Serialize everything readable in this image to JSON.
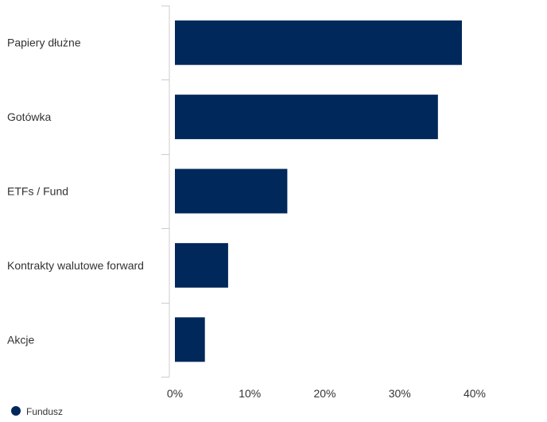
{
  "chart_data": {
    "type": "bar",
    "orientation": "horizontal",
    "categories": [
      "Papiery dłużne",
      "Gotówka",
      "ETFs / Fund",
      "Kontrakty walutowe forward",
      "Akcje"
    ],
    "series": [
      {
        "name": "Fundusz",
        "values": [
          38.3,
          35.1,
          15.0,
          7.1,
          4.0
        ]
      }
    ],
    "xlim": [
      0,
      50
    ],
    "xticks": [
      "0%",
      "10%",
      "20%",
      "30%",
      "40%"
    ],
    "grid": false,
    "legend": "bottom-left",
    "colors": {
      "bar": "#00285a",
      "axis": "#cccccc"
    }
  }
}
